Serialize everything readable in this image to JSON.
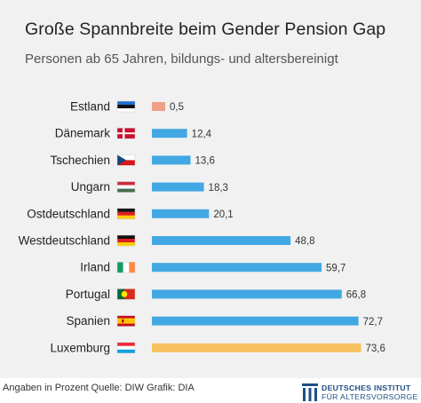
{
  "title": "Große Spannbreite beim Gender Pension Gap",
  "subtitle": "Personen ab 65 Jahren, bildungs- und altersbereinigt",
  "footnote": "Angaben in Prozent  Quelle: DIW  Grafik: DIA",
  "logo": {
    "line1": "DEUTSCHES INSTITUT",
    "line2": "FÜR ALTERSVORSORGE"
  },
  "colors": {
    "background": "#f1f1f1",
    "bar_default": "#42a8e3",
    "bar_lowest": "#f0a088",
    "bar_highest": "#f7c15f",
    "logo": "#1f4f87"
  },
  "chart_data": {
    "type": "bar",
    "orientation": "horizontal",
    "title": "Große Spannbreite beim Gender Pension Gap",
    "subtitle": "Personen ab 65 Jahren, bildungs- und altersbereinigt",
    "categories": [
      "Estland",
      "Dänemark",
      "Tschechien",
      "Ungarn",
      "Ostdeutschland",
      "Westdeutschland",
      "Irland",
      "Portugal",
      "Spanien",
      "Luxemburg"
    ],
    "values": [
      0.5,
      12.4,
      13.6,
      18.3,
      20.1,
      48.8,
      59.7,
      66.8,
      72.7,
      73.6
    ],
    "value_labels": [
      "0,5",
      "12,4",
      "13,6",
      "18,3",
      "20,1",
      "48,8",
      "59,7",
      "66,8",
      "72,7",
      "73,6"
    ],
    "flags": [
      "flag-estonia",
      "flag-denmark",
      "flag-czechia",
      "flag-hungary",
      "flag-germany",
      "flag-germany",
      "flag-ireland",
      "flag-portugal",
      "flag-spain",
      "flag-luxembourg"
    ],
    "xlim": [
      0,
      75
    ],
    "grid": false,
    "legend": "none"
  }
}
